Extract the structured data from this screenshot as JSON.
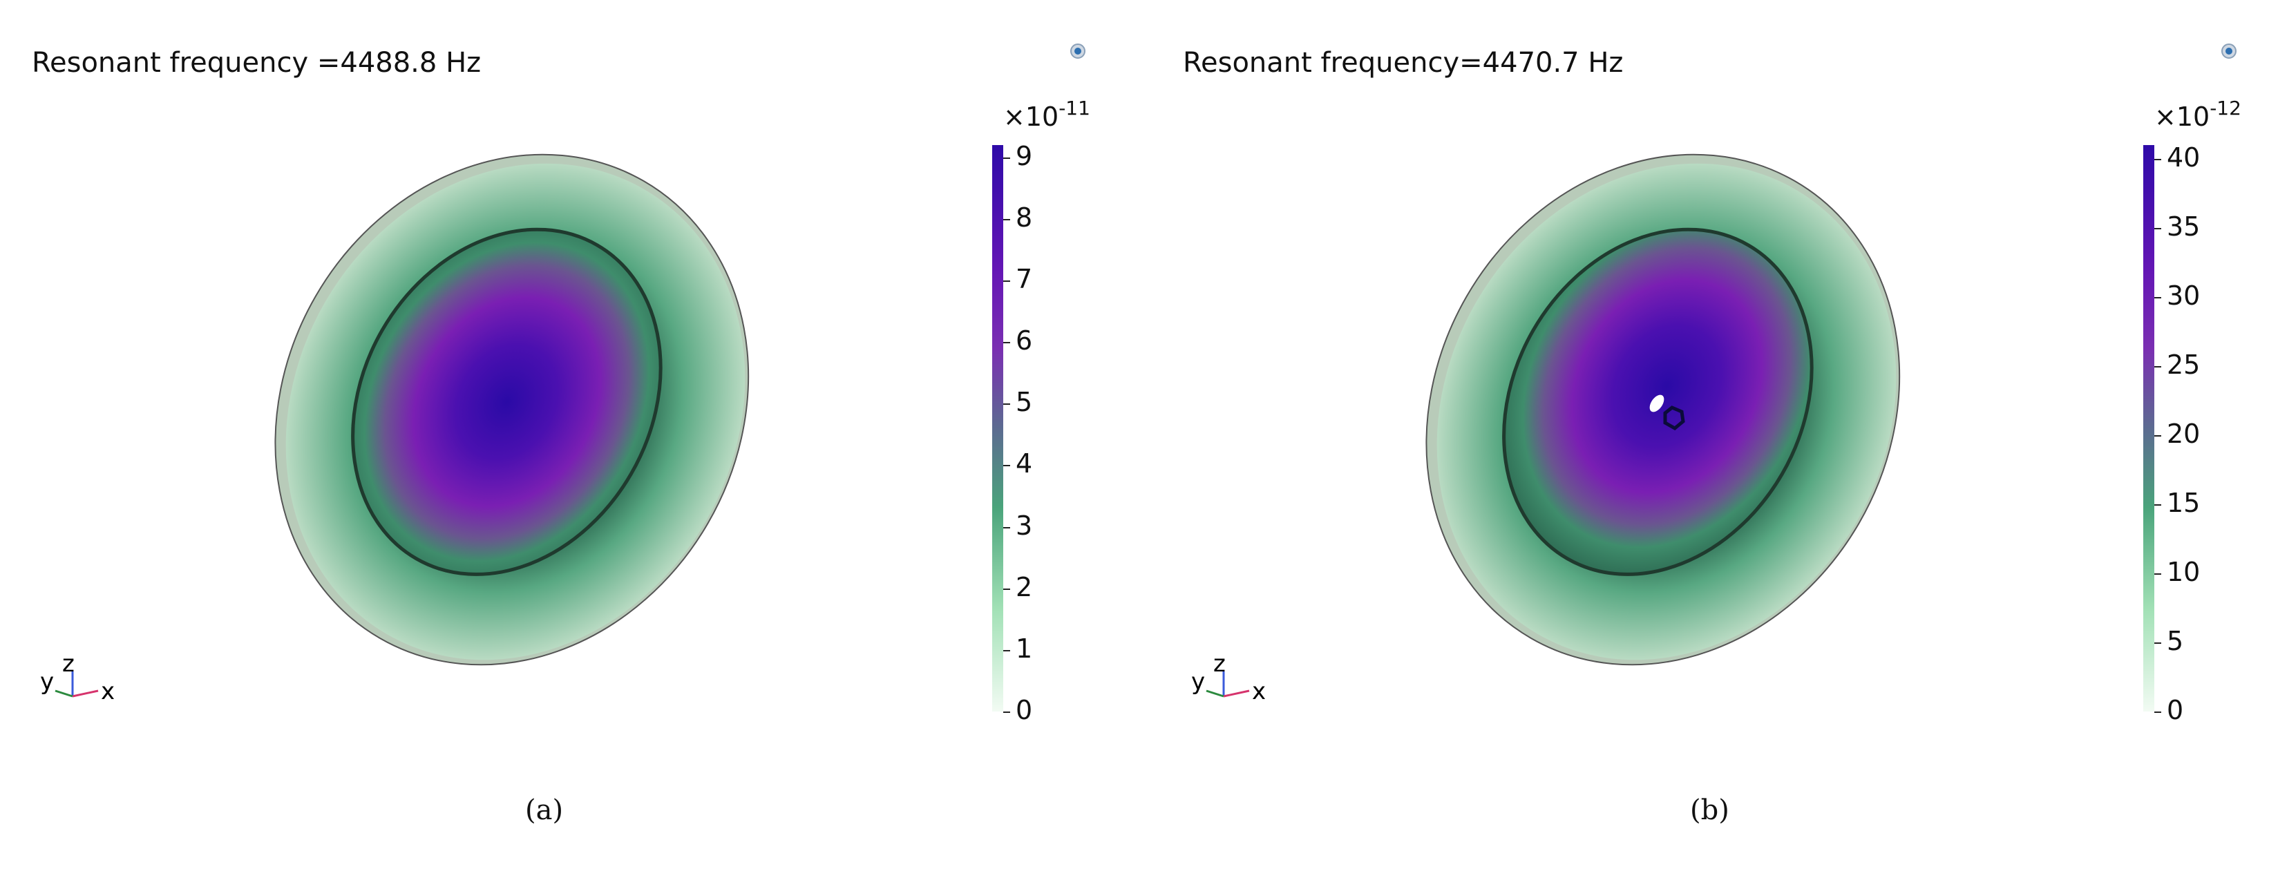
{
  "panel_a": {
    "title": "Resonant frequency =4488.8 Hz",
    "colorbar": {
      "multiplier": "×10",
      "exponent": "-11",
      "ticks": [
        "0",
        "1",
        "2",
        "3",
        "4",
        "5",
        "6",
        "7",
        "8",
        "9"
      ],
      "min": 0,
      "max": 9.2
    },
    "caption": "(a)"
  },
  "panel_b": {
    "title": "Resonant frequency=4470.7 Hz",
    "colorbar": {
      "multiplier": "×10",
      "exponent": "-12",
      "ticks": [
        "0",
        "5",
        "10",
        "15",
        "20",
        "25",
        "30",
        "35",
        "40"
      ],
      "min": 0,
      "max": 41
    },
    "caption": "(b)"
  },
  "axes_labels": {
    "y": "y",
    "z": "z",
    "x": "x"
  },
  "colors": {
    "low": "#f2fbf3",
    "mid_green": "#4aa47b",
    "mid": "#5c6b91",
    "purple": "#7a2fb2",
    "high": "#2e0aa8"
  }
}
